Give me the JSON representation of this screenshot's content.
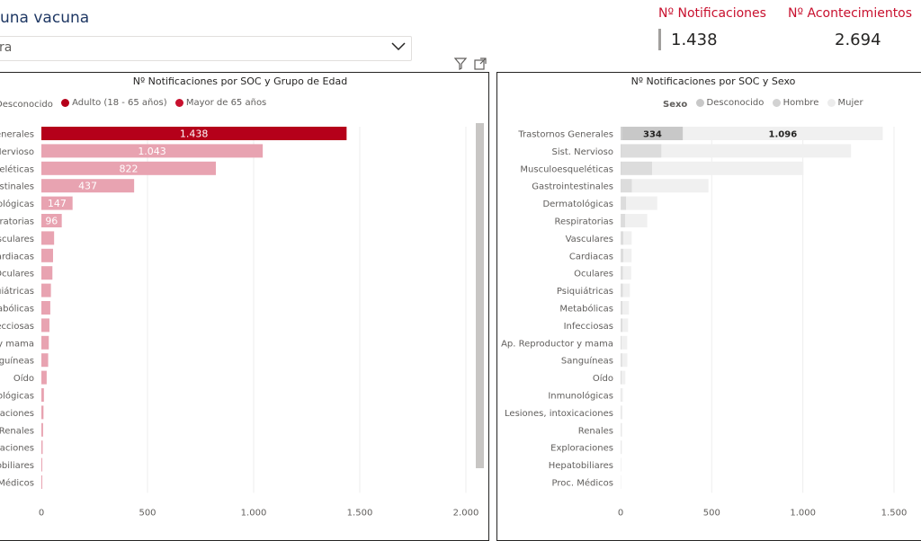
{
  "header": {
    "select_title": "una vacuna",
    "select_value": "ra"
  },
  "kpis": [
    {
      "label": "Nº Notificaciones",
      "value": "1.438"
    },
    {
      "label": "Nº Acontecimientos",
      "value": "2.694"
    }
  ],
  "colors": {
    "accent": "#c8102e",
    "age_light": "#e8a3b1",
    "age_dark": "#b5001a",
    "sex_desconocido": "#d0d0d0",
    "sex_hombre": "#e4e4e4",
    "sex_mujer": "#f0f0f0"
  },
  "chart_data": [
    {
      "type": "bar",
      "orientation": "horizontal",
      "title": "Nº Notificaciones por SOC y Grupo de Edad",
      "legend": {
        "title": "",
        "entries": [
          {
            "label": "Desconocido",
            "color": "#c8c8c8"
          },
          {
            "label": "Adulto (18 - 65 años)",
            "color": "#b5001a"
          },
          {
            "label": "Mayor de 65 años",
            "color": "#c8102e"
          }
        ]
      },
      "categories": [
        "Generales",
        "Nervioso",
        "queléticas",
        "estinales",
        "ológicas",
        "piratorias",
        "sculares",
        "ardiacas",
        "Oculares",
        "uiátricas",
        "abólicas",
        "ecciosas",
        "y mama",
        "anguíneas",
        "Oído",
        "ológicas",
        "icaciones",
        "Renales",
        "oraciones",
        "obiliares",
        "Médicos"
      ],
      "values": [
        1438,
        1043,
        822,
        437,
        147,
        96,
        60,
        55,
        52,
        45,
        42,
        38,
        35,
        32,
        25,
        12,
        10,
        8,
        6,
        3,
        2
      ],
      "data_labels": [
        "1.438",
        "1.043",
        "822",
        "437",
        "147",
        "96",
        "",
        "",
        "",
        "",
        "",
        "",
        "",
        "",
        "",
        "",
        "",
        "",
        "",
        "",
        ""
      ],
      "highlight_index": 0,
      "xlim": [
        0,
        2000
      ],
      "x_ticks": [
        0,
        500,
        1000,
        1500,
        2000
      ],
      "x_tick_labels": [
        "0",
        "500",
        "1.000",
        "1.500",
        "2.000"
      ]
    },
    {
      "type": "bar",
      "orientation": "horizontal",
      "stacked": true,
      "title": "Nº Notificaciones por SOC y Sexo",
      "legend": {
        "title": "Sexo",
        "entries": [
          {
            "label": "Desconocido",
            "color": "#c8c8c8"
          },
          {
            "label": "Hombre",
            "color": "#d2d2d2"
          },
          {
            "label": "Mujer",
            "color": "#ececec"
          }
        ]
      },
      "categories": [
        "Trastornos Generales",
        "Sist. Nervioso",
        "Musculoesqueléticas",
        "Gastrointestinales",
        "Dermatológicas",
        "Respiratorias",
        "Vasculares",
        "Cardiacas",
        "Oculares",
        "Psiquiátricas",
        "Metabólicas",
        "Infecciosas",
        "Ap. Reproductor y mama",
        "Sanguíneas",
        "Oído",
        "Inmunológicas",
        "Lesiones, intoxicaciones",
        "Renales",
        "Exploraciones",
        "Hepatobiliares",
        "Proc. Médicos"
      ],
      "series": [
        {
          "name": "Desconocido",
          "values": [
            8,
            4,
            3,
            2,
            1,
            1,
            1,
            1,
            1,
            1,
            1,
            1,
            1,
            1,
            0,
            0,
            0,
            0,
            0,
            0,
            0
          ]
        },
        {
          "name": "Hombre",
          "values": [
            334,
            220,
            170,
            60,
            30,
            25,
            15,
            14,
            12,
            12,
            10,
            10,
            5,
            8,
            6,
            3,
            3,
            2,
            2,
            1,
            1
          ]
        },
        {
          "name": "Mujer",
          "values": [
            1096,
            1040,
            830,
            420,
            170,
            120,
            45,
            45,
            45,
            38,
            35,
            30,
            30,
            28,
            20,
            10,
            8,
            7,
            5,
            3,
            2
          ]
        }
      ],
      "data_labels": [
        [
          "",
          "334",
          "1.096"
        ]
      ],
      "xlim": [
        0,
        1500
      ],
      "x_ticks": [
        0,
        500,
        1000,
        1500
      ],
      "x_tick_labels": [
        "0",
        "500",
        "1.000",
        "1.500"
      ]
    }
  ]
}
